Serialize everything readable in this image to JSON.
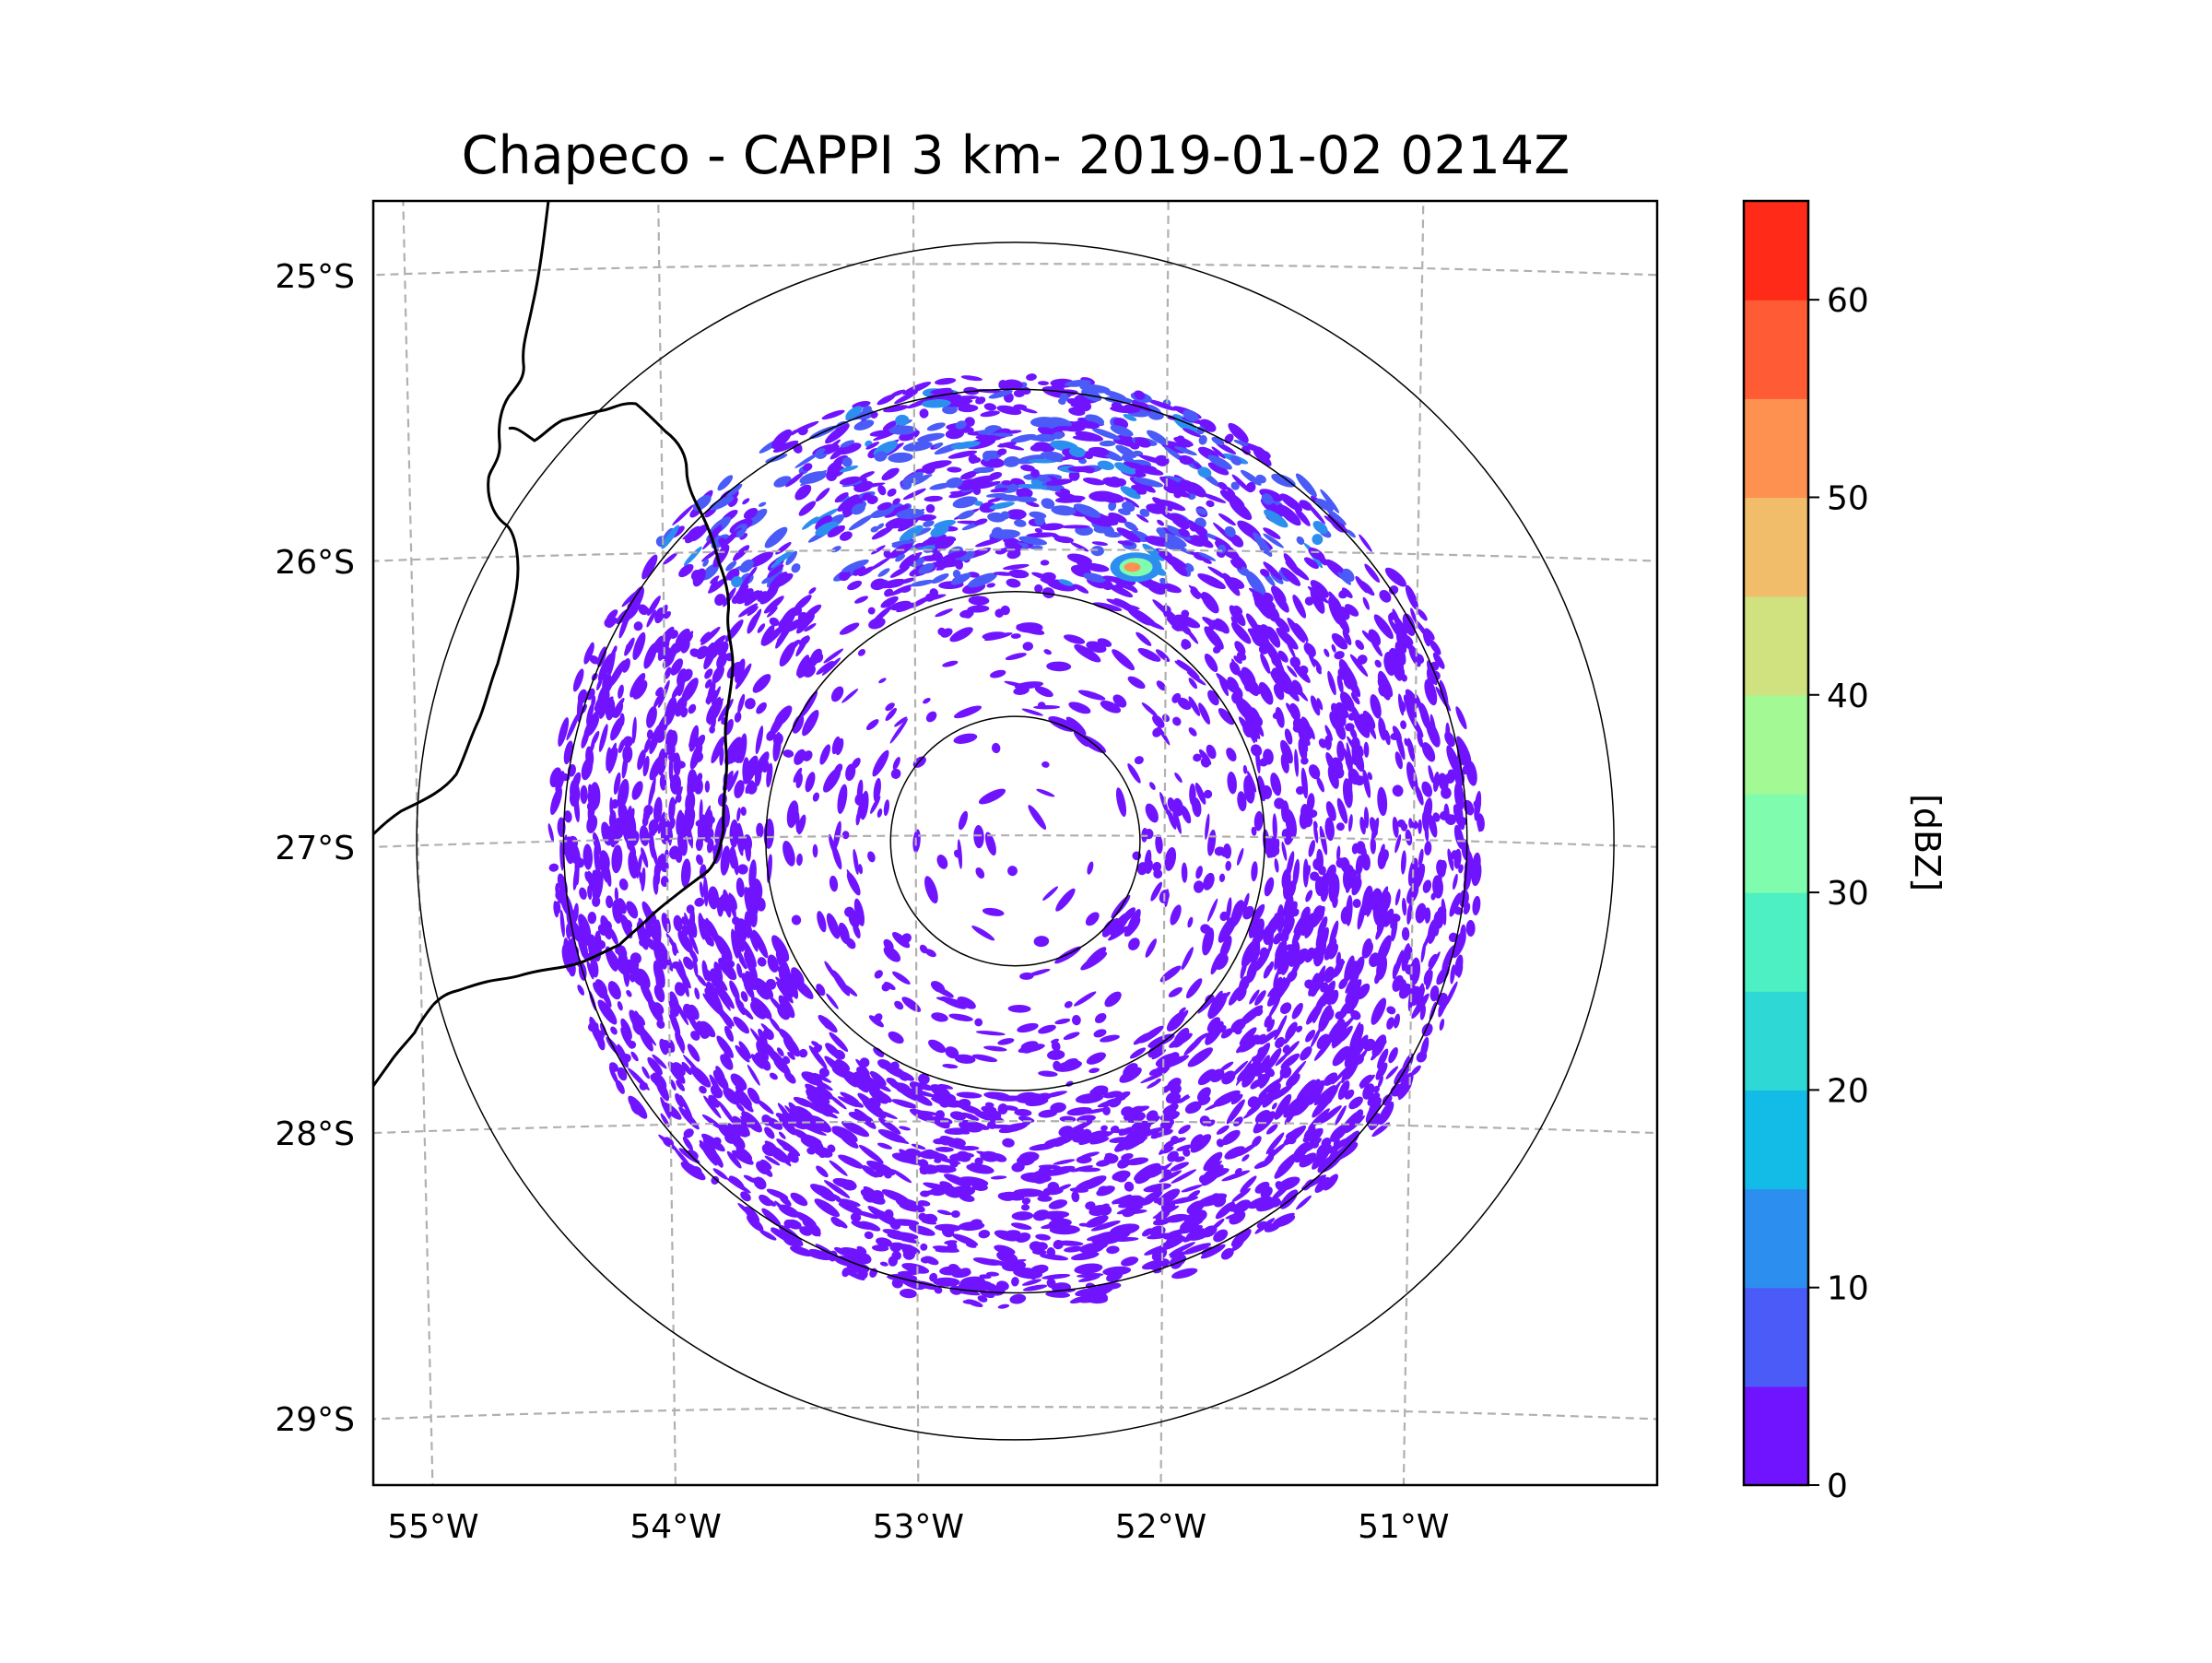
{
  "chart_data": {
    "type": "heatmap",
    "title": "Chapeco - CAPPI 3 km- 2019-01-02 0214Z",
    "xlabel": "",
    "ylabel": "",
    "xlim": [
      -55.18,
      -50.0
    ],
    "ylim": [
      -29.3,
      -24.78
    ],
    "x_ticks": [
      {
        "value": -55,
        "label": "55°W"
      },
      {
        "value": -54,
        "label": "54°W"
      },
      {
        "value": -53,
        "label": "53°W"
      },
      {
        "value": -52,
        "label": "52°W"
      },
      {
        "value": -51,
        "label": "51°W"
      }
    ],
    "y_ticks": [
      {
        "value": -25,
        "label": "25°S"
      },
      {
        "value": -26,
        "label": "26°S"
      },
      {
        "value": -27,
        "label": "27°S"
      },
      {
        "value": -28,
        "label": "28°S"
      },
      {
        "value": -29,
        "label": "29°S"
      }
    ],
    "grid": true,
    "radar_center": {
      "lon": -52.6,
      "lat": -27.02
    },
    "range_rings_deg": [
      0.45,
      0.9,
      1.63,
      2.16
    ],
    "echo_field": {
      "outer_radius_deg": 1.63,
      "blocked_azimuths_deg": [
        -56,
        -33
      ],
      "peak_cell": {
        "lon": -52.12,
        "lat": -26.06,
        "max_dbz": 50
      }
    },
    "colorbar": {
      "label": "[dBZ]",
      "min": 0,
      "max": 65,
      "step": 5,
      "ticks": [
        0,
        10,
        20,
        30,
        40,
        50,
        60
      ],
      "colors": [
        "#7014ff",
        "#4a5bf7",
        "#2c8ff0",
        "#12bce6",
        "#2ed9d5",
        "#4cf0c2",
        "#7ffcad",
        "#a3f993",
        "#d0e17f",
        "#f2bd6a",
        "#ff9150",
        "#ff5c36",
        "#ff2a18"
      ]
    }
  }
}
